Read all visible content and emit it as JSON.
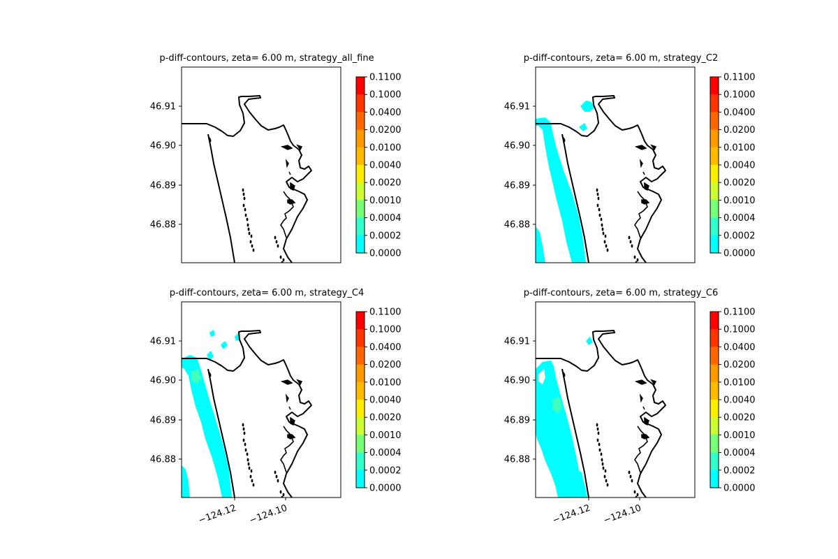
{
  "chart_data": [
    {
      "type": "contour",
      "title": "p-diff-contours, zeta= 6.00 m, strategy_all_fine",
      "x_ticks": [],
      "y_ticks": [
        "46.91",
        "46.90",
        "46.89",
        "46.88"
      ],
      "colorbar_levels": [
        "0.1100",
        "0.1000",
        "0.0400",
        "0.0200",
        "0.0100",
        "0.0040",
        "0.0020",
        "0.0010",
        "0.0004",
        "0.0002",
        "0.0000"
      ],
      "colorbar_colors": [
        "#ff0000",
        "#ff3300",
        "#ff6600",
        "#ff9900",
        "#ffbb00",
        "#ffee00",
        "#ccff33",
        "#77ff77",
        "#33ffcc",
        "#00ffff",
        "#ffffff"
      ],
      "filled_regions": []
    },
    {
      "type": "contour",
      "title": "p-diff-contours, zeta= 6.00 m, strategy_C2",
      "x_ticks": [],
      "y_ticks": [
        "46.91",
        "46.90",
        "46.89",
        "46.88"
      ],
      "colorbar_levels": [
        "0.1100",
        "0.1000",
        "0.0400",
        "0.0200",
        "0.0100",
        "0.0040",
        "0.0020",
        "0.0010",
        "0.0004",
        "0.0002",
        "0.0000"
      ],
      "colorbar_colors": [
        "#ff0000",
        "#ff3300",
        "#ff6600",
        "#ff9900",
        "#ffbb00",
        "#ffee00",
        "#ccff33",
        "#77ff77",
        "#33ffcc",
        "#00ffff",
        "#ffffff"
      ],
      "filled_regions": [
        "0.0002-0.0004"
      ]
    },
    {
      "type": "contour",
      "title": "p-diff-contours, zeta= 6.00 m, strategy_C4",
      "x_ticks": [
        "−124.12",
        "−124.10"
      ],
      "y_ticks": [
        "46.91",
        "46.90",
        "46.89",
        "46.88"
      ],
      "colorbar_levels": [
        "0.1100",
        "0.1000",
        "0.0400",
        "0.0200",
        "0.0100",
        "0.0040",
        "0.0020",
        "0.0010",
        "0.0004",
        "0.0002",
        "0.0000"
      ],
      "colorbar_colors": [
        "#ff0000",
        "#ff3300",
        "#ff6600",
        "#ff9900",
        "#ffbb00",
        "#ffee00",
        "#ccff33",
        "#77ff77",
        "#33ffcc",
        "#00ffff",
        "#ffffff"
      ],
      "filled_regions": [
        "0.0002-0.0004",
        "0.0004-0.0010"
      ]
    },
    {
      "type": "contour",
      "title": "p-diff-contours, zeta= 6.00 m, strategy_C6",
      "x_ticks": [
        "−124.12",
        "−124.10"
      ],
      "y_ticks": [
        "46.91",
        "46.90",
        "46.89",
        "46.88"
      ],
      "colorbar_levels": [
        "0.1100",
        "0.1000",
        "0.0400",
        "0.0200",
        "0.0100",
        "0.0040",
        "0.0020",
        "0.0010",
        "0.0004",
        "0.0002",
        "0.0000"
      ],
      "colorbar_colors": [
        "#ff0000",
        "#ff3300",
        "#ff6600",
        "#ff9900",
        "#ffbb00",
        "#ffee00",
        "#ccff33",
        "#77ff77",
        "#33ffcc",
        "#00ffff",
        "#ffffff"
      ],
      "filled_regions": [
        "0.0002-0.0004",
        "0.0004-0.0010"
      ]
    }
  ]
}
